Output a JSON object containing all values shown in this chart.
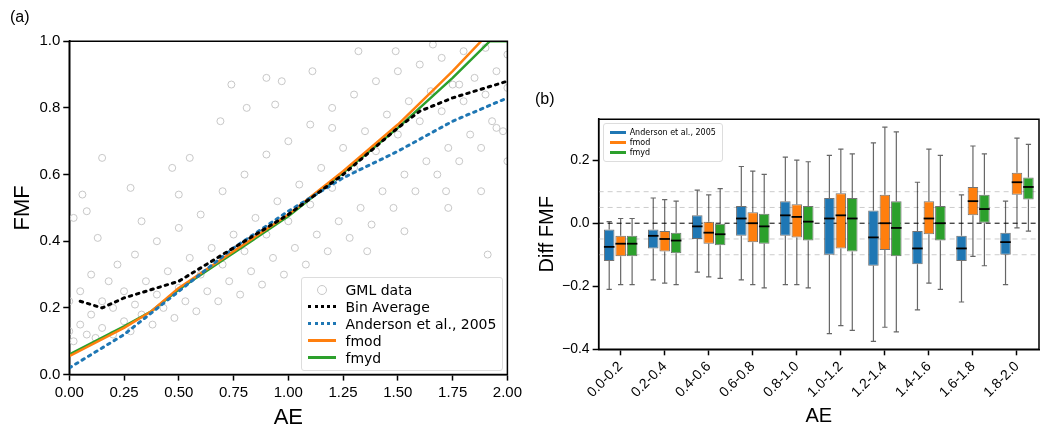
{
  "chart_data": [
    {
      "type": "scatter",
      "title": "(a)",
      "xlabel": "AE",
      "ylabel": "FMF",
      "xlim": [
        0,
        2
      ],
      "ylim": [
        0,
        1
      ],
      "xticks": [
        {
          "value": 0,
          "label": "0.00"
        },
        {
          "value": 0.25,
          "label": "0.25"
        },
        {
          "value": 0.5,
          "label": "0.50"
        },
        {
          "value": 0.75,
          "label": "0.75"
        },
        {
          "value": 1,
          "label": "1.00"
        },
        {
          "value": 1.25,
          "label": "1.25"
        },
        {
          "value": 1.5,
          "label": "1.50"
        },
        {
          "value": 1.75,
          "label": "1.75"
        },
        {
          "value": 2,
          "label": "2.00"
        }
      ],
      "yticks": [
        {
          "value": 0,
          "label": "0.0"
        },
        0.2,
        0.4,
        0.6,
        0.8,
        {
          "value": 1,
          "label": "1.0"
        }
      ],
      "grid": false,
      "legend": "bottom right",
      "series": [
        {
          "name": "GML data",
          "type": "scatter",
          "marker": "circle",
          "color": "#c8c8c8",
          "x": [
            0,
            0,
            0.02,
            0.05,
            0.05,
            0.08,
            0.1,
            0.1,
            0.12,
            0.15,
            0.15,
            0.18,
            0.2,
            0.2,
            0.22,
            0.25,
            0.25,
            0.28,
            0.3,
            0.3,
            0.33,
            0.35,
            0.38,
            0.4,
            0.4,
            0.43,
            0.45,
            0.48,
            0.5,
            0.5,
            0.53,
            0.55,
            0.58,
            0.6,
            0.6,
            0.63,
            0.65,
            0.68,
            0.7,
            0.7,
            0.73,
            0.75,
            0.78,
            0.8,
            0.8,
            0.83,
            0.85,
            0.88,
            0.9,
            0.9,
            0.93,
            0.95,
            0.98,
            1,
            1,
            1.03,
            1.05,
            1.08,
            1.1,
            1.1,
            1.13,
            1.15,
            1.18,
            1.2,
            1.2,
            1.23,
            1.25,
            1.28,
            1.3,
            1.3,
            1.33,
            1.35,
            1.38,
            1.4,
            1.4,
            1.43,
            1.45,
            1.48,
            1.5,
            1.5,
            1.53,
            1.55,
            1.58,
            1.6,
            1.6,
            1.63,
            1.65,
            1.68,
            1.7,
            1.7,
            1.73,
            1.75,
            1.78,
            1.8,
            1.8,
            1.83,
            1.85,
            1.88,
            1.9,
            1.9,
            1.93,
            1.95,
            1.98,
            2,
            2,
            0.74,
            0.9,
            0.97,
            1.11,
            0.15,
            0.06,
            0.28,
            0.81,
            0.94,
            1.32,
            1.91,
            0.69,
            0.55,
            0.47,
            0.02,
            0.08,
            0.13,
            0.5,
            0.33,
            1.73,
            1.53,
            1.36,
            1.49,
            1.66,
            1.78,
            1.95,
            2,
            1.88,
            1.72,
            1.2
          ],
          "values": [
            0.13,
            0.22,
            0.1,
            0.15,
            0.25,
            0.12,
            0.18,
            0.3,
            0.11,
            0.22,
            0.14,
            0.28,
            0.12,
            0.2,
            0.33,
            0.16,
            0.25,
            0.13,
            0.21,
            0.36,
            0.18,
            0.28,
            0.15,
            0.24,
            0.4,
            0.2,
            0.31,
            0.17,
            0.26,
            0.44,
            0.22,
            0.35,
            0.19,
            0.3,
            0.48,
            0.25,
            0.38,
            0.22,
            0.33,
            0.55,
            0.28,
            0.42,
            0.24,
            0.37,
            0.6,
            0.31,
            0.47,
            0.27,
            0.42,
            0.66,
            0.35,
            0.52,
            0.3,
            0.46,
            0.7,
            0.38,
            0.57,
            0.33,
            0.51,
            0.75,
            0.42,
            0.62,
            0.37,
            0.56,
            0.8,
            0.46,
            0.68,
            0.41,
            0.62,
            0.84,
            0.5,
            0.73,
            0.45,
            0.67,
            0.88,
            0.55,
            0.78,
            0.5,
            0.72,
            0.91,
            0.6,
            0.82,
            0.55,
            0.76,
            0.93,
            0.64,
            0.85,
            0.6,
            0.79,
            0.95,
            0.68,
            0.87,
            0.64,
            0.82,
            0.97,
            0.72,
            0.89,
            0.68,
            0.84,
            0.98,
            0.76,
            0.91,
            0.73,
            0.86,
            0.96,
            0.87,
            0.89,
            0.88,
            0.91,
            0.65,
            0.54,
            0.56,
            0.8,
            0.81,
            0.97,
            0.36,
            0.76,
            0.65,
            0.62,
            0.47,
            0.49,
            0.41,
            0.54,
            0.46,
            0.5,
            0.43,
            0.37,
            0.97,
            0.99,
            0.87,
            0.74,
            0.64,
            0.55,
            0.55,
            0.74
          ]
        },
        {
          "name": "Bin Average",
          "type": "line",
          "marker": "none",
          "line_style": "dotted",
          "color": "#000000",
          "x": [
            0.05,
            0.15,
            0.25,
            0.5,
            0.75,
            1,
            1.25,
            1.5,
            1.6,
            1.75,
            2
          ],
          "values": [
            0.22,
            0.2,
            0.23,
            0.28,
            0.38,
            0.48,
            0.6,
            0.74,
            0.79,
            0.83,
            0.88
          ]
        },
        {
          "name": "Anderson et al., 2005",
          "type": "line",
          "marker": "none",
          "line_style": "dotted",
          "color": "#1f77b4",
          "x": [
            0,
            0.25,
            0.5,
            0.75,
            1,
            1.25,
            1.5,
            1.75,
            2
          ],
          "values": [
            0.02,
            0.12,
            0.25,
            0.38,
            0.49,
            0.59,
            0.67,
            0.76,
            0.83
          ]
        },
        {
          "name": "fmod",
          "type": "line",
          "marker": "none",
          "line_style": "solid",
          "color": "#ff7f0e",
          "x": [
            0,
            0.25,
            0.375,
            0.5,
            0.75,
            1,
            1.25,
            1.5,
            1.75,
            1.88
          ],
          "values": [
            0.055,
            0.14,
            0.19,
            0.26,
            0.37,
            0.48,
            0.61,
            0.75,
            0.91,
            1
          ]
        },
        {
          "name": "fmyd",
          "type": "line",
          "marker": "none",
          "line_style": "solid",
          "color": "#2ca02c",
          "x": [
            0,
            0.25,
            0.375,
            0.5,
            0.75,
            1,
            1.25,
            1.5,
            1.75,
            1.92,
            2
          ],
          "values": [
            0.06,
            0.145,
            0.19,
            0.255,
            0.365,
            0.475,
            0.605,
            0.74,
            0.89,
            1,
            1
          ]
        }
      ]
    },
    {
      "type": "box",
      "title": "(b)",
      "xlabel": "AE",
      "ylabel": "Diff FMF",
      "ylim": [
        -0.4,
        0.33
      ],
      "yticks": [
        {
          "value": -0.4,
          "label": "−0.4"
        },
        {
          "value": -0.2,
          "label": "−0.2"
        },
        {
          "value": 0,
          "label": "0.0"
        },
        0.2
      ],
      "grid": false,
      "legend": "top left",
      "categories": [
        "0.0-0.2",
        "0.2-0.4",
        "0.4-0.6",
        "0.6-0.8",
        "0.8-1.0",
        "1.0-1.2",
        "1.2-1.4",
        "1.4-1.6",
        "1.6-1.8",
        "1.8-2.0"
      ],
      "ref_lines": [
        {
          "axis": "y",
          "value": 0,
          "color": "#000000",
          "line_style": "dashed"
        },
        {
          "axis": "y",
          "value": 0.05,
          "color": "#cccccc",
          "line_style": "dashed"
        },
        {
          "axis": "y",
          "value": -0.05,
          "color": "#cccccc",
          "line_style": "dashed"
        },
        {
          "axis": "y",
          "value": 0.1,
          "color": "#cccccc",
          "line_style": "dashed"
        },
        {
          "axis": "y",
          "value": -0.1,
          "color": "#cccccc",
          "line_style": "dashed"
        }
      ],
      "series": [
        {
          "name": "Anderson et al., 2005",
          "color": "#1f77b4",
          "boxes": [
            {
              "low": -0.21,
              "q1": -0.12,
              "median": -0.075,
              "q3": -0.02,
              "high": 0.005
            },
            {
              "low": -0.18,
              "q1": -0.08,
              "median": -0.04,
              "q3": -0.02,
              "high": 0.08
            },
            {
              "low": -0.155,
              "q1": -0.05,
              "median": -0.01,
              "q3": 0.025,
              "high": 0.105
            },
            {
              "low": -0.18,
              "q1": -0.04,
              "median": 0.015,
              "q3": 0.055,
              "high": 0.18
            },
            {
              "low": -0.195,
              "q1": -0.04,
              "median": 0.025,
              "q3": 0.07,
              "high": 0.21
            },
            {
              "low": -0.35,
              "q1": -0.1,
              "median": 0.015,
              "q3": 0.08,
              "high": 0.215
            },
            {
              "low": -0.375,
              "q1": -0.135,
              "median": -0.045,
              "q3": 0.04,
              "high": 0.255
            },
            {
              "low": -0.275,
              "q1": -0.13,
              "median": -0.08,
              "q3": -0.025,
              "high": 0.13
            },
            {
              "low": -0.25,
              "q1": -0.12,
              "median": -0.08,
              "q3": -0.04,
              "high": 0.09
            },
            {
              "low": -0.195,
              "q1": -0.1,
              "median": -0.06,
              "q3": -0.03,
              "high": 0.07
            }
          ]
        },
        {
          "name": "fmod",
          "color": "#ff7f0e",
          "boxes": [
            {
              "low": -0.195,
              "q1": -0.105,
              "median": -0.065,
              "q3": -0.04,
              "high": 0.015
            },
            {
              "low": -0.19,
              "q1": -0.09,
              "median": -0.05,
              "q3": -0.025,
              "high": 0.075
            },
            {
              "low": -0.17,
              "q1": -0.065,
              "median": -0.03,
              "q3": 0.005,
              "high": 0.09
            },
            {
              "low": -0.195,
              "q1": -0.06,
              "median": 0,
              "q3": 0.035,
              "high": 0.165
            },
            {
              "low": -0.195,
              "q1": -0.045,
              "median": 0.02,
              "q3": 0.06,
              "high": 0.2
            },
            {
              "low": -0.325,
              "q1": -0.08,
              "median": 0.025,
              "q3": 0.095,
              "high": 0.235
            },
            {
              "low": -0.33,
              "q1": -0.085,
              "median": 0,
              "q3": 0.09,
              "high": 0.305
            },
            {
              "low": -0.19,
              "q1": -0.035,
              "median": 0.015,
              "q3": 0.07,
              "high": 0.235
            },
            {
              "low": -0.105,
              "q1": 0.025,
              "median": 0.07,
              "q3": 0.115,
              "high": 0.245
            },
            {
              "low": -0.015,
              "q1": 0.09,
              "median": 0.13,
              "q3": 0.16,
              "high": 0.27
            }
          ]
        },
        {
          "name": "fmyd",
          "color": "#2ca02c",
          "boxes": [
            {
              "low": -0.195,
              "q1": -0.105,
              "median": -0.065,
              "q3": -0.04,
              "high": 0.015
            },
            {
              "low": -0.195,
              "q1": -0.095,
              "median": -0.055,
              "q3": -0.03,
              "high": 0.07
            },
            {
              "low": -0.175,
              "q1": -0.07,
              "median": -0.035,
              "q3": 0,
              "high": 0.11
            },
            {
              "low": -0.205,
              "q1": -0.065,
              "median": -0.01,
              "q3": 0.03,
              "high": 0.155
            },
            {
              "low": -0.205,
              "q1": -0.055,
              "median": 0.005,
              "q3": 0.055,
              "high": 0.195
            },
            {
              "low": -0.34,
              "q1": -0.09,
              "median": 0.015,
              "q3": 0.08,
              "high": 0.22
            },
            {
              "low": -0.345,
              "q1": -0.105,
              "median": -0.015,
              "q3": 0.07,
              "high": 0.29
            },
            {
              "low": -0.21,
              "q1": -0.055,
              "median": 0,
              "q3": 0.055,
              "high": 0.215
            },
            {
              "low": -0.135,
              "q1": 0,
              "median": 0.045,
              "q3": 0.09,
              "high": 0.22
            },
            {
              "low": -0.025,
              "q1": 0.075,
              "median": 0.115,
              "q3": 0.145,
              "high": 0.25
            }
          ]
        }
      ]
    }
  ]
}
